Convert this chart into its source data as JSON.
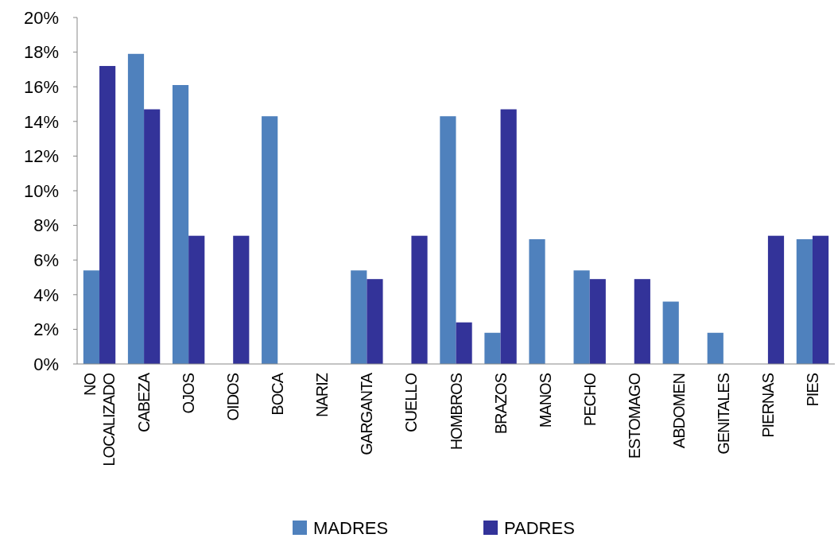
{
  "chart_data": {
    "type": "bar",
    "categories": [
      "NO LOCALIZADO",
      "CABEZA",
      "OJOS",
      "OIDOS",
      "BOCA",
      "NARIZ",
      "GARGANTA",
      "CUELLO",
      "HOMBROS",
      "BRAZOS",
      "MANOS",
      "PECHO",
      "ESTOMAGO",
      "ABDOMEN",
      "GENITALES",
      "PIERNAS",
      "PIES"
    ],
    "series": [
      {
        "name": "MADRES",
        "color": "#4f81bd",
        "values": [
          5.4,
          17.9,
          16.1,
          0,
          14.3,
          0,
          5.4,
          0,
          14.3,
          1.8,
          7.2,
          5.4,
          0,
          3.6,
          1.8,
          0,
          7.2
        ]
      },
      {
        "name": "PADRES",
        "color": "#333399",
        "values": [
          17.2,
          14.7,
          7.4,
          7.4,
          0,
          0,
          4.9,
          7.4,
          2.4,
          14.7,
          0,
          4.9,
          4.9,
          0,
          0,
          7.4,
          7.4
        ]
      }
    ],
    "ylim": [
      0,
      20
    ],
    "yticks": [
      {
        "value": 0,
        "label": "0%"
      },
      {
        "value": 2,
        "label": "2%"
      },
      {
        "value": 4,
        "label": "4%"
      },
      {
        "value": 6,
        "label": "6%"
      },
      {
        "value": 8,
        "label": "8%"
      },
      {
        "value": 10,
        "label": "10%"
      },
      {
        "value": 12,
        "label": "12%"
      },
      {
        "value": 14,
        "label": "14%"
      },
      {
        "value": 16,
        "label": "16%"
      },
      {
        "value": 18,
        "label": "18%"
      },
      {
        "value": 20,
        "label": "20%"
      }
    ],
    "grid": false,
    "legend": "bottom"
  }
}
